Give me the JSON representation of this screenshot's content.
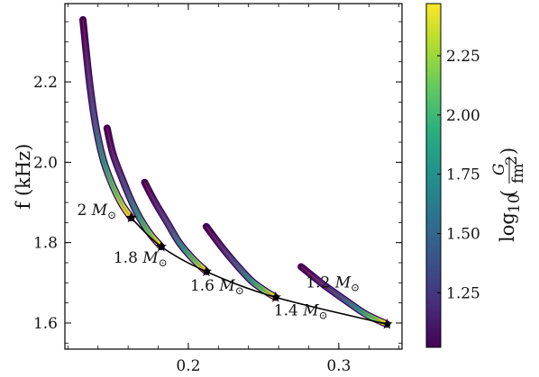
{
  "chart_data": {
    "type": "scatter",
    "title": "",
    "xlabel": "",
    "ylabel": "f (kHz)",
    "xlim": [
      0.118,
      0.342
    ],
    "ylim": [
      1.535,
      2.395
    ],
    "x_ticks": [
      0.2,
      0.3
    ],
    "x_tick_labels": [
      "0.2",
      "0.3"
    ],
    "y_ticks": [
      1.6,
      1.8,
      2.0,
      2.2
    ],
    "y_tick_labels": [
      "1.6",
      "1.8",
      "2.0",
      "2.2"
    ],
    "grid": false,
    "colorbar": {
      "label": "log10(G / fm^2)",
      "colormap": "viridis",
      "range": [
        1.02,
        2.47
      ],
      "ticks": [
        1.25,
        1.5,
        1.75,
        2.0,
        2.25
      ],
      "tick_labels": [
        "1.25",
        "1.50",
        "1.75",
        "2.00",
        "2.25"
      ]
    },
    "series": [
      {
        "mass_label": "2",
        "end": {
          "x": 0.162,
          "y": 1.862
        },
        "curve_x": [
          0.13,
          0.132,
          0.135,
          0.139,
          0.144,
          0.15,
          0.156,
          0.162
        ],
        "curve_y": [
          2.355,
          2.28,
          2.18,
          2.08,
          2.0,
          1.94,
          1.895,
          1.862
        ]
      },
      {
        "mass_label": "1.8",
        "end": {
          "x": 0.182,
          "y": 1.79
        },
        "curve_x": [
          0.146,
          0.15,
          0.156,
          0.162,
          0.168,
          0.175,
          0.182
        ],
        "curve_y": [
          2.085,
          2.02,
          1.96,
          1.905,
          1.86,
          1.82,
          1.79
        ]
      },
      {
        "mass_label": "1.6",
        "end": {
          "x": 0.212,
          "y": 1.728
        },
        "curve_x": [
          0.171,
          0.178,
          0.186,
          0.194,
          0.203,
          0.212
        ],
        "curve_y": [
          1.95,
          1.9,
          1.85,
          1.8,
          1.76,
          1.728
        ]
      },
      {
        "mass_label": "1.4",
        "end": {
          "x": 0.258,
          "y": 1.664
        },
        "curve_x": [
          0.212,
          0.222,
          0.232,
          0.242,
          0.251,
          0.258
        ],
        "curve_y": [
          1.84,
          1.79,
          1.745,
          1.705,
          1.68,
          1.664
        ]
      },
      {
        "mass_label": "1.2",
        "end": {
          "x": 0.332,
          "y": 1.597
        },
        "curve_x": [
          0.275,
          0.29,
          0.305,
          0.318,
          0.332
        ],
        "curve_y": [
          1.74,
          1.695,
          1.655,
          1.622,
          1.597
        ]
      }
    ],
    "mass_unit": "M⊙",
    "mass_labels": [
      "2 M⊙",
      "1.8 M⊙",
      "1.6 M⊙",
      "1.4 M⊙",
      "1.2 M⊙"
    ]
  }
}
